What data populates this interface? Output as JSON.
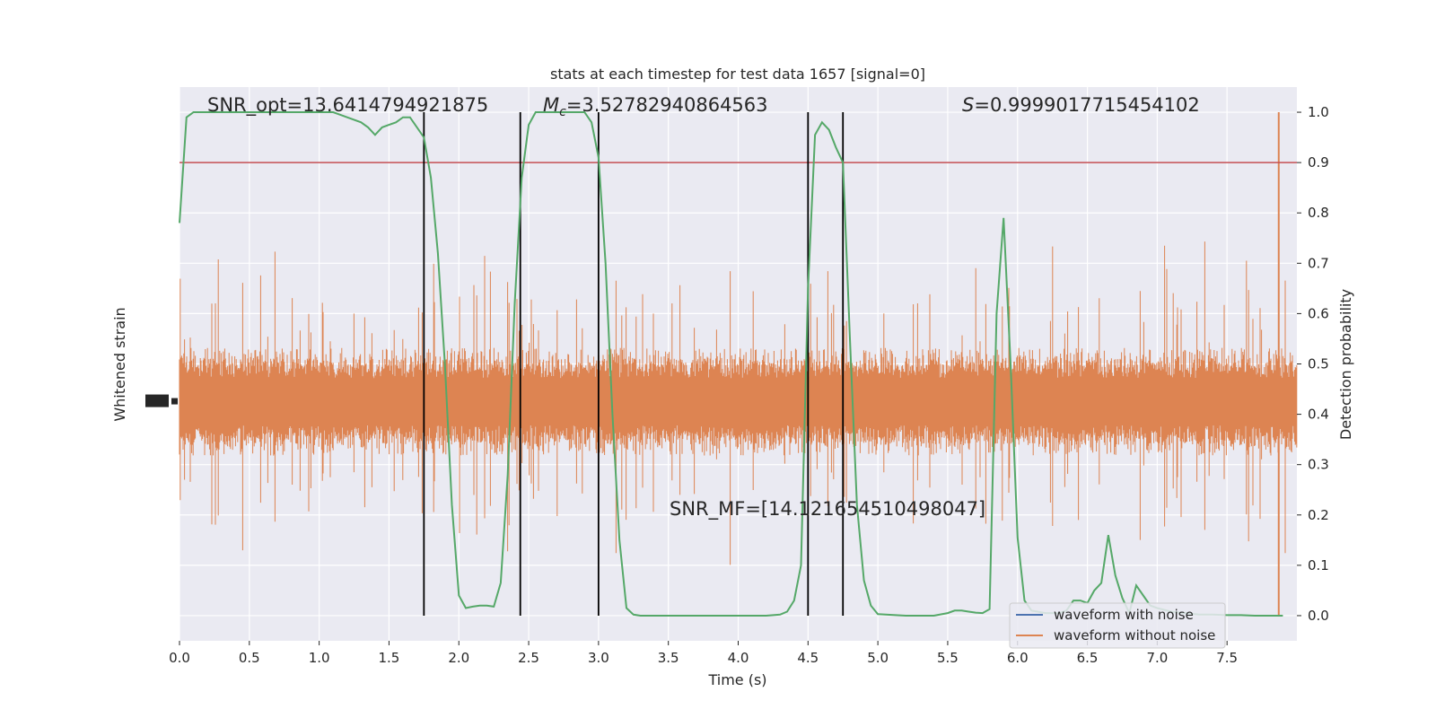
{
  "chart_data": {
    "type": "line",
    "title": "stats at each timestep for test data 1657 [signal=0]",
    "xlabel": "Time (s)",
    "ylabel_left": "Whitened strain",
    "ylabel_right": "Detection probability",
    "xlim": [
      0,
      8
    ],
    "ylim_right": [
      -0.05,
      1.05
    ],
    "x_ticks": [
      "0.0",
      "0.5",
      "1.0",
      "1.5",
      "2.0",
      "2.5",
      "3.0",
      "3.5",
      "4.0",
      "4.5",
      "5.0",
      "5.5",
      "6.0",
      "6.5",
      "7.0",
      "7.5"
    ],
    "y_ticks_right": [
      "0.0",
      "0.1",
      "0.2",
      "0.3",
      "0.4",
      "0.5",
      "0.6",
      "0.7",
      "0.8",
      "0.9",
      "1.0"
    ],
    "grid": true,
    "colors": {
      "background": "#eaeaf2",
      "grid": "#ffffff",
      "with_noise": "#4c72b0",
      "without_noise": "#dd8452",
      "probability": "#55a868",
      "threshold": "#c44e52",
      "vlines": "#000000"
    },
    "annotations": {
      "snr_opt": "SNR_opt=13.6414794921875",
      "mc_symbol": "M",
      "mc_subscript": "c",
      "mc_value": "=3.52782940864563",
      "s_symbol": "S",
      "s_value": "=0.9999017715454102",
      "snr_mf": "SNR_MF=[14.121654510498047]"
    },
    "legend": {
      "placement": "lower-right",
      "entries": [
        "waveform with noise",
        "waveform without noise"
      ]
    },
    "threshold": 0.9,
    "vertical_lines": [
      1.75,
      2.44,
      3.0,
      4.5,
      4.75
    ],
    "detection_probability": {
      "x": [
        0,
        0.05,
        0.1,
        0.15,
        0.2,
        0.3,
        0.4,
        0.5,
        0.6,
        0.7,
        0.8,
        0.9,
        1.0,
        1.1,
        1.2,
        1.3,
        1.35,
        1.4,
        1.45,
        1.5,
        1.55,
        1.6,
        1.65,
        1.7,
        1.75,
        1.8,
        1.85,
        1.9,
        1.95,
        2.0,
        2.05,
        2.1,
        2.15,
        2.2,
        2.25,
        2.3,
        2.35,
        2.4,
        2.45,
        2.5,
        2.55,
        2.6,
        2.65,
        2.7,
        2.75,
        2.8,
        2.85,
        2.9,
        2.95,
        3.0,
        3.05,
        3.1,
        3.15,
        3.2,
        3.25,
        3.3,
        3.5,
        3.8,
        4.0,
        4.2,
        4.3,
        4.35,
        4.4,
        4.45,
        4.5,
        4.55,
        4.6,
        4.65,
        4.7,
        4.75,
        4.8,
        4.85,
        4.9,
        4.95,
        5.0,
        5.2,
        5.4,
        5.5,
        5.55,
        5.6,
        5.65,
        5.7,
        5.75,
        5.8,
        5.85,
        5.9,
        5.95,
        6.0,
        6.05,
        6.1,
        6.2,
        6.3,
        6.35,
        6.4,
        6.45,
        6.5,
        6.55,
        6.6,
        6.65,
        6.7,
        6.75,
        6.8,
        6.85,
        6.9,
        6.95,
        7.0,
        7.1,
        7.2,
        7.3,
        7.4,
        7.5,
        7.6,
        7.7,
        7.8,
        7.9
      ],
      "y": [
        0.78,
        0.99,
        1.0,
        1.0,
        1.0,
        1.0,
        1.0,
        1.0,
        1.0,
        1.0,
        1.0,
        1.0,
        1.0,
        1.0,
        0.99,
        0.98,
        0.97,
        0.955,
        0.97,
        0.975,
        0.98,
        0.99,
        0.99,
        0.97,
        0.95,
        0.87,
        0.72,
        0.5,
        0.22,
        0.04,
        0.015,
        0.018,
        0.02,
        0.02,
        0.018,
        0.065,
        0.28,
        0.62,
        0.87,
        0.975,
        1.0,
        1.0,
        1.0,
        1.0,
        1.0,
        1.0,
        1.0,
        1.0,
        0.98,
        0.91,
        0.7,
        0.4,
        0.15,
        0.015,
        0.002,
        0.0,
        0.0,
        0.0,
        0.0,
        0.0,
        0.002,
        0.008,
        0.03,
        0.1,
        0.65,
        0.955,
        0.98,
        0.965,
        0.93,
        0.9,
        0.55,
        0.22,
        0.07,
        0.02,
        0.003,
        0.0,
        0.0,
        0.005,
        0.01,
        0.01,
        0.008,
        0.006,
        0.005,
        0.013,
        0.6,
        0.79,
        0.5,
        0.155,
        0.03,
        0.01,
        0.005,
        0.005,
        0.01,
        0.03,
        0.03,
        0.025,
        0.05,
        0.065,
        0.16,
        0.08,
        0.035,
        0.005,
        0.06,
        0.04,
        0.02,
        0.015,
        0.008,
        0.005,
        0.002,
        0.002,
        0.001,
        0.001,
        0.0,
        0.0,
        0.0
      ]
    },
    "series": [
      {
        "name": "waveform with noise"
      },
      {
        "name": "waveform without noise"
      },
      {
        "name": "detection probability"
      }
    ]
  }
}
